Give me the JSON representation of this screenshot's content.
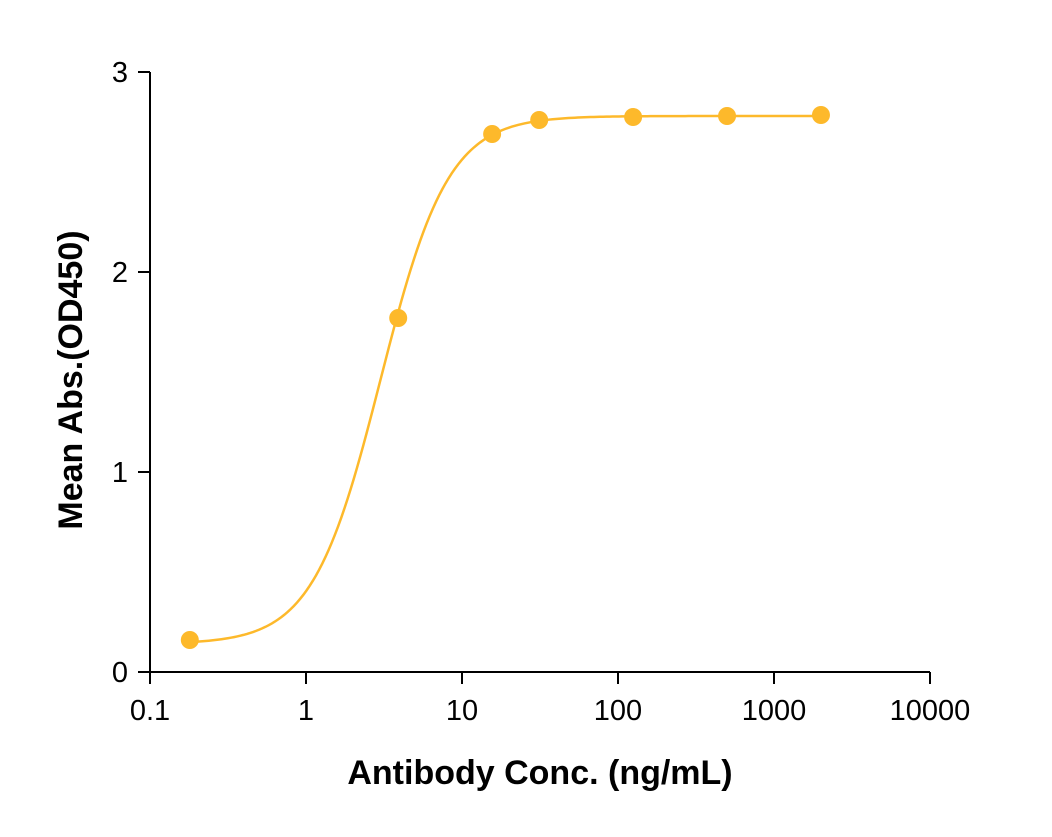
{
  "chart_data": {
    "type": "scatter",
    "title": "",
    "xlabel": "Antibody Conc. (ng/mL)",
    "ylabel": "Mean Abs.(OD450)",
    "xscale": "log",
    "xlim": [
      0.1,
      10000
    ],
    "ylim": [
      0,
      3
    ],
    "xticks": [
      0.1,
      1,
      10,
      100,
      1000,
      10000
    ],
    "xtick_labels": [
      "0.1",
      "1",
      "10",
      "100",
      "1000",
      "10000"
    ],
    "yticks": [
      0,
      1,
      2,
      3
    ],
    "ytick_labels": [
      "0",
      "1",
      "2",
      "3"
    ],
    "grid": false,
    "color": "#FDB92B",
    "series": [
      {
        "x": [
          0.18,
          3.9,
          15.6,
          31.25,
          125,
          500,
          2000
        ],
        "y": [
          0.16,
          1.77,
          2.69,
          2.76,
          2.775,
          2.78,
          2.785
        ]
      }
    ],
    "fit": {
      "model": "4PL",
      "bottom": 0.14,
      "top": 2.78,
      "ec50": 3.0,
      "hill": 2.0
    }
  }
}
